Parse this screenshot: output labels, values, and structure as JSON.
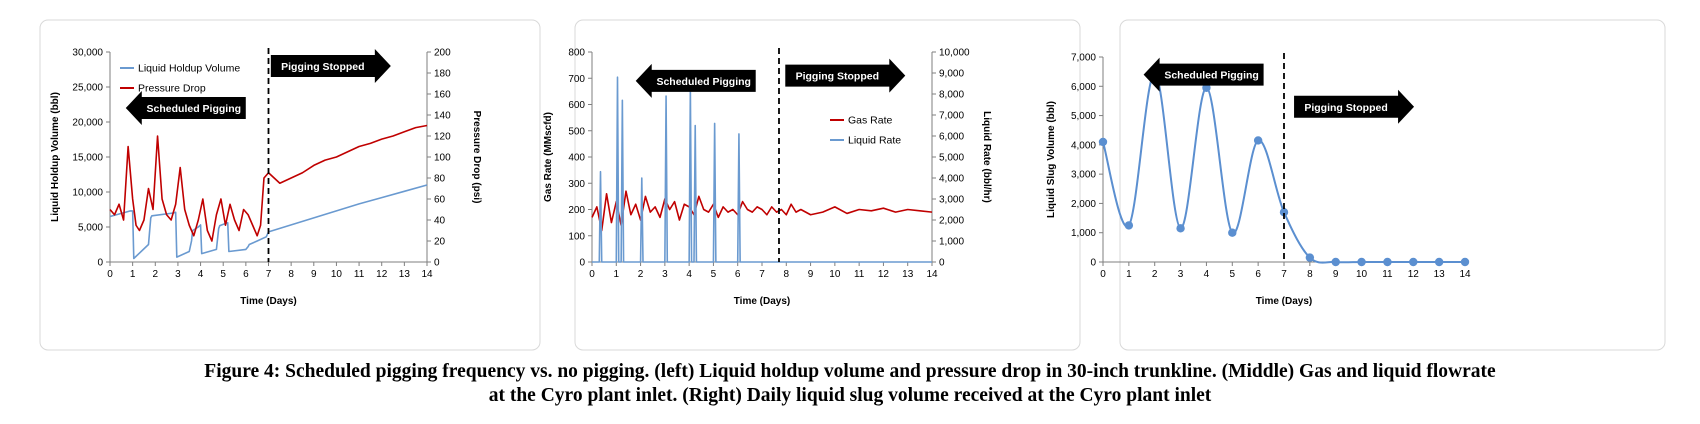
{
  "caption": {
    "line1": "Figure 4: Scheduled pigging frequency vs. no pigging. (left) Liquid holdup volume and pressure drop in 30-inch trunkline. (Middle) Gas and liquid flowrate",
    "line2": "at the Cyro plant inlet. (Right) Daily liquid slug volume received at the Cyro plant inlet"
  },
  "chart_data": [
    {
      "id": "left",
      "type": "line",
      "xlabel": "Time (Days)",
      "ylabel": "Liquid Holdup Volume (bbl)",
      "y2label": "Pressure Drop (psi)",
      "xlim": [
        0,
        14
      ],
      "ylim": [
        0,
        30000
      ],
      "y2lim": [
        0,
        200
      ],
      "x_ticks": [
        0,
        1,
        2,
        3,
        4,
        5,
        6,
        7,
        8,
        9,
        10,
        11,
        12,
        13,
        14
      ],
      "y_ticks": [
        0,
        5000,
        10000,
        15000,
        20000,
        25000,
        30000
      ],
      "y_tick_labels": [
        "0",
        "5,000",
        "10,000",
        "15,000",
        "20,000",
        "25,000",
        "30,000"
      ],
      "y2_ticks": [
        0,
        20,
        40,
        60,
        80,
        100,
        120,
        140,
        160,
        180,
        200
      ],
      "y2_tick_labels": [
        "0",
        "20",
        "40",
        "60",
        "80",
        "100",
        "120",
        "140",
        "160",
        "180",
        "200"
      ],
      "legend_position": "top-left",
      "series": [
        {
          "name": "Liquid Holdup Volume",
          "axis": "left",
          "color": "#6a9ad0",
          "x": [
            0,
            0.9,
            1.0,
            1.05,
            1.7,
            1.8,
            1.85,
            2.8,
            2.9,
            2.95,
            3.5,
            3.6,
            3.65,
            3.9,
            4.0,
            4.05,
            4.7,
            4.8,
            4.85,
            5.1,
            5.2,
            5.25,
            6.0,
            6.1,
            6.15,
            6.5,
            6.9,
            7.0,
            8,
            9,
            10,
            11,
            12,
            13,
            14
          ],
          "y": [
            6500,
            7300,
            7300,
            500,
            2500,
            6300,
            6600,
            7000,
            7100,
            700,
            1500,
            3000,
            4500,
            5000,
            5300,
            1200,
            1800,
            4800,
            5200,
            5500,
            5600,
            1500,
            1800,
            2200,
            2500,
            3000,
            3600,
            4300,
            5300,
            6300,
            7300,
            8300,
            9200,
            10100,
            11000
          ]
        },
        {
          "name": "Pressure Drop",
          "axis": "right",
          "color": "#c00000",
          "x": [
            0,
            0.2,
            0.4,
            0.6,
            0.8,
            1.0,
            1.15,
            1.3,
            1.5,
            1.7,
            1.9,
            2.1,
            2.3,
            2.5,
            2.7,
            2.9,
            3.1,
            3.3,
            3.5,
            3.7,
            3.9,
            4.1,
            4.3,
            4.5,
            4.7,
            4.9,
            5.1,
            5.3,
            5.5,
            5.7,
            5.9,
            6.1,
            6.3,
            6.5,
            6.65,
            6.8,
            7.0,
            7.5,
            8.0,
            8.5,
            9.0,
            9.5,
            10.0,
            10.5,
            11.0,
            11.5,
            12.0,
            12.5,
            13.0,
            13.5,
            14.0
          ],
          "y": [
            50,
            45,
            55,
            40,
            110,
            60,
            35,
            30,
            40,
            70,
            50,
            120,
            60,
            45,
            40,
            55,
            90,
            50,
            35,
            25,
            40,
            60,
            30,
            20,
            45,
            60,
            35,
            55,
            40,
            30,
            50,
            45,
            35,
            25,
            35,
            80,
            85,
            75,
            80,
            85,
            92,
            97,
            100,
            105,
            110,
            113,
            117,
            120,
            124,
            128,
            130
          ]
        }
      ],
      "annotations": [
        {
          "text": "Scheduled Pigging",
          "direction": "left",
          "x": 3.7,
          "y": 22000
        },
        {
          "text": "Pigging Stopped",
          "direction": "right",
          "x": 9.4,
          "y": 28000
        }
      ],
      "vline": 7
    },
    {
      "id": "middle",
      "type": "line",
      "xlabel": "Time (Days)",
      "ylabel": "Gas Rate (MMscfd)",
      "y2label": "Liquid Rate (bbl/hr)",
      "xlim": [
        0,
        14
      ],
      "ylim": [
        0,
        800
      ],
      "y2lim": [
        0,
        10000
      ],
      "x_ticks": [
        0,
        1,
        2,
        3,
        4,
        5,
        6,
        7,
        8,
        9,
        10,
        11,
        12,
        13,
        14
      ],
      "y_ticks": [
        0,
        100,
        200,
        300,
        400,
        500,
        600,
        700,
        800
      ],
      "y_tick_labels": [
        "0",
        "100",
        "200",
        "300",
        "400",
        "500",
        "600",
        "700",
        "800"
      ],
      "y2_ticks": [
        0,
        1000,
        2000,
        3000,
        4000,
        5000,
        6000,
        7000,
        8000,
        9000,
        10000
      ],
      "y2_tick_labels": [
        "0",
        "1,000",
        "2,000",
        "3,000",
        "4,000",
        "5,000",
        "6,000",
        "7,000",
        "8,000",
        "9,000",
        "10,000"
      ],
      "legend_position": "right",
      "series": [
        {
          "name": "Gas Rate",
          "axis": "left",
          "color": "#c00000",
          "x": [
            0,
            0.2,
            0.4,
            0.6,
            0.8,
            1.0,
            1.2,
            1.4,
            1.6,
            1.8,
            2.0,
            2.2,
            2.4,
            2.6,
            2.8,
            3.0,
            3.2,
            3.4,
            3.6,
            3.8,
            4.0,
            4.2,
            4.4,
            4.6,
            4.8,
            5.0,
            5.2,
            5.4,
            5.6,
            5.8,
            6.0,
            6.2,
            6.4,
            6.6,
            6.8,
            7.0,
            7.2,
            7.4,
            7.6,
            7.8,
            8.0,
            8.2,
            8.4,
            8.6,
            9.0,
            9.5,
            10.0,
            10.5,
            11.0,
            11.5,
            12.0,
            12.5,
            13.0,
            13.5,
            14.0
          ],
          "y": [
            170,
            210,
            120,
            260,
            150,
            230,
            140,
            270,
            180,
            220,
            160,
            250,
            190,
            210,
            170,
            240,
            200,
            230,
            160,
            220,
            210,
            180,
            250,
            200,
            190,
            220,
            170,
            210,
            190,
            200,
            180,
            230,
            200,
            190,
            210,
            200,
            180,
            210,
            190,
            200,
            180,
            220,
            190,
            200,
            180,
            190,
            210,
            185,
            200,
            195,
            205,
            190,
            200,
            195,
            190
          ]
        },
        {
          "name": "Liquid Rate",
          "axis": "right",
          "color": "#6a9ad0",
          "x": [
            0,
            0.3,
            0.35,
            0.4,
            1.0,
            1.05,
            1.1,
            1.2,
            1.25,
            1.3,
            2.0,
            2.05,
            2.1,
            3.0,
            3.05,
            3.1,
            4.0,
            4.05,
            4.1,
            4.2,
            4.25,
            4.3,
            5.0,
            5.05,
            5.1,
            6.0,
            6.05,
            6.1,
            7.0,
            14.0
          ],
          "y": [
            0,
            0,
            4300,
            0,
            0,
            8800,
            0,
            0,
            7700,
            0,
            0,
            4000,
            0,
            0,
            7900,
            0,
            0,
            8300,
            0,
            0,
            6500,
            0,
            0,
            6600,
            0,
            0,
            6100,
            0,
            0,
            0
          ]
        }
      ],
      "annotations": [
        {
          "text": "Scheduled Pigging",
          "direction": "left",
          "x": 4.6,
          "y": 690
        },
        {
          "text": "Pigging Stopped",
          "direction": "right",
          "x": 10.1,
          "y": 710
        }
      ],
      "vline": 7.7
    },
    {
      "id": "right",
      "type": "line",
      "xlabel": "Time (Days)",
      "ylabel": "Liquid Slug Volume (bbl)",
      "xlim": [
        0,
        14
      ],
      "ylim": [
        0,
        7000
      ],
      "x_ticks": [
        0,
        1,
        2,
        3,
        4,
        5,
        6,
        7,
        8,
        9,
        10,
        11,
        12,
        13,
        14
      ],
      "y_ticks": [
        0,
        1000,
        2000,
        3000,
        4000,
        5000,
        6000,
        7000
      ],
      "y_tick_labels": [
        "0",
        "1,000",
        "2,000",
        "3,000",
        "4,000",
        "5,000",
        "6,000",
        "7,000"
      ],
      "series": [
        {
          "name": "",
          "axis": "left",
          "color": "#5b8fd0",
          "markers": true,
          "x": [
            0,
            1,
            2,
            3,
            4,
            5,
            6,
            7,
            8,
            9,
            10,
            11,
            12,
            13,
            14
          ],
          "y": [
            4100,
            1250,
            6450,
            1150,
            5950,
            1000,
            4150,
            1700,
            150,
            0,
            0,
            0,
            0,
            0,
            0
          ]
        }
      ],
      "annotations": [
        {
          "text": "Scheduled Pigging",
          "direction": "left",
          "x": 4.2,
          "y": 6400
        },
        {
          "text": "Pigging Stopped",
          "direction": "right",
          "x": 9.4,
          "y": 5300
        }
      ],
      "vline": 7
    }
  ]
}
